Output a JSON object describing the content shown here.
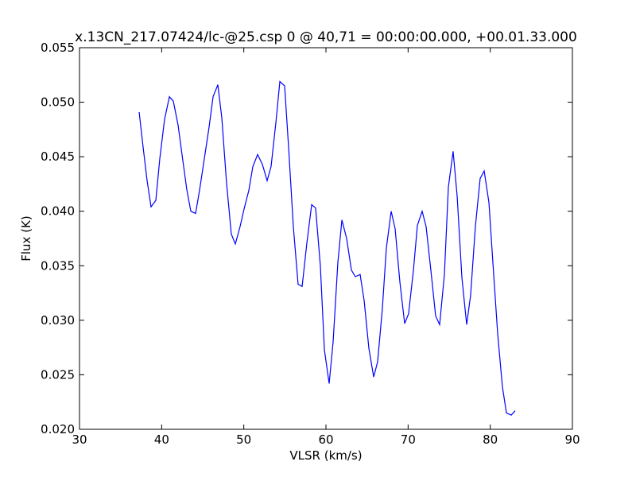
{
  "chart_data": {
    "type": "line",
    "title": "x.13CN_217.07424/lc-@25.csp 0 @ 40,71 = 00:00:00.000, +00.01.33.000",
    "xlabel": "VLSR (km/s)",
    "ylabel": "Flux (K)",
    "x": [
      37.26,
      37.74,
      38.23,
      38.71,
      39.29,
      39.77,
      40.35,
      40.94,
      41.42,
      42.0,
      42.48,
      43.06,
      43.55,
      44.13,
      44.61,
      45.19,
      45.77,
      46.26,
      46.84,
      47.32,
      47.9,
      48.48,
      48.97,
      49.55,
      50.03,
      50.61,
      51.1,
      51.68,
      52.26,
      52.84,
      53.32,
      53.9,
      54.39,
      54.97,
      55.45,
      56.03,
      56.61,
      57.1,
      57.68,
      58.26,
      58.74,
      59.32,
      59.81,
      60.39,
      60.87,
      61.45,
      61.94,
      62.52,
      63.1,
      63.58,
      64.16,
      64.65,
      65.23,
      65.81,
      66.29,
      66.87,
      67.35,
      67.94,
      68.42,
      69.0,
      69.58,
      70.06,
      70.65,
      71.13,
      71.71,
      72.19,
      72.77,
      73.35,
      73.84,
      74.42,
      74.9,
      75.48,
      75.97,
      76.55,
      77.13,
      77.61,
      78.19,
      78.77,
      79.26,
      79.84,
      80.32,
      80.9,
      81.48,
      81.97,
      82.55,
      83.03
    ],
    "series": [
      {
        "name": "spectrum",
        "color": "#0000ff",
        "values": [
          0.0491,
          0.0459,
          0.0428,
          0.0404,
          0.041,
          0.0448,
          0.0484,
          0.0505,
          0.0501,
          0.0479,
          0.0452,
          0.042,
          0.04,
          0.0398,
          0.0419,
          0.0448,
          0.0477,
          0.0505,
          0.0516,
          0.0486,
          0.0426,
          0.0379,
          0.037,
          0.0386,
          0.0402,
          0.0419,
          0.0441,
          0.0452,
          0.0443,
          0.0428,
          0.0441,
          0.0481,
          0.0519,
          0.0515,
          0.0459,
          0.0386,
          0.0333,
          0.0331,
          0.0371,
          0.0406,
          0.0403,
          0.035,
          0.0273,
          0.0242,
          0.028,
          0.0353,
          0.0392,
          0.0375,
          0.0346,
          0.034,
          0.0342,
          0.0318,
          0.0274,
          0.0248,
          0.0262,
          0.0311,
          0.0366,
          0.04,
          0.0384,
          0.0335,
          0.0297,
          0.0306,
          0.0346,
          0.0387,
          0.04,
          0.0386,
          0.0346,
          0.0304,
          0.0296,
          0.0342,
          0.0422,
          0.0455,
          0.0414,
          0.0339,
          0.0296,
          0.0323,
          0.0386,
          0.043,
          0.0437,
          0.0408,
          0.0353,
          0.0288,
          0.0239,
          0.0215,
          0.0213,
          0.0217
        ]
      }
    ],
    "xlim": [
      30,
      90
    ],
    "xticks": [
      30,
      40,
      50,
      60,
      70,
      80,
      90
    ],
    "ylim": [
      0.02,
      0.055
    ],
    "yticks": [
      {
        "value": 0.02,
        "label": "0.020"
      },
      {
        "value": 0.025,
        "label": "0.025"
      },
      {
        "value": 0.03,
        "label": "0.030"
      },
      {
        "value": 0.035,
        "label": "0.035"
      },
      {
        "value": 0.04,
        "label": "0.040"
      },
      {
        "value": 0.045,
        "label": "0.045"
      },
      {
        "value": 0.05,
        "label": "0.050"
      },
      {
        "value": 0.055,
        "label": "0.055"
      }
    ],
    "grid": false
  }
}
